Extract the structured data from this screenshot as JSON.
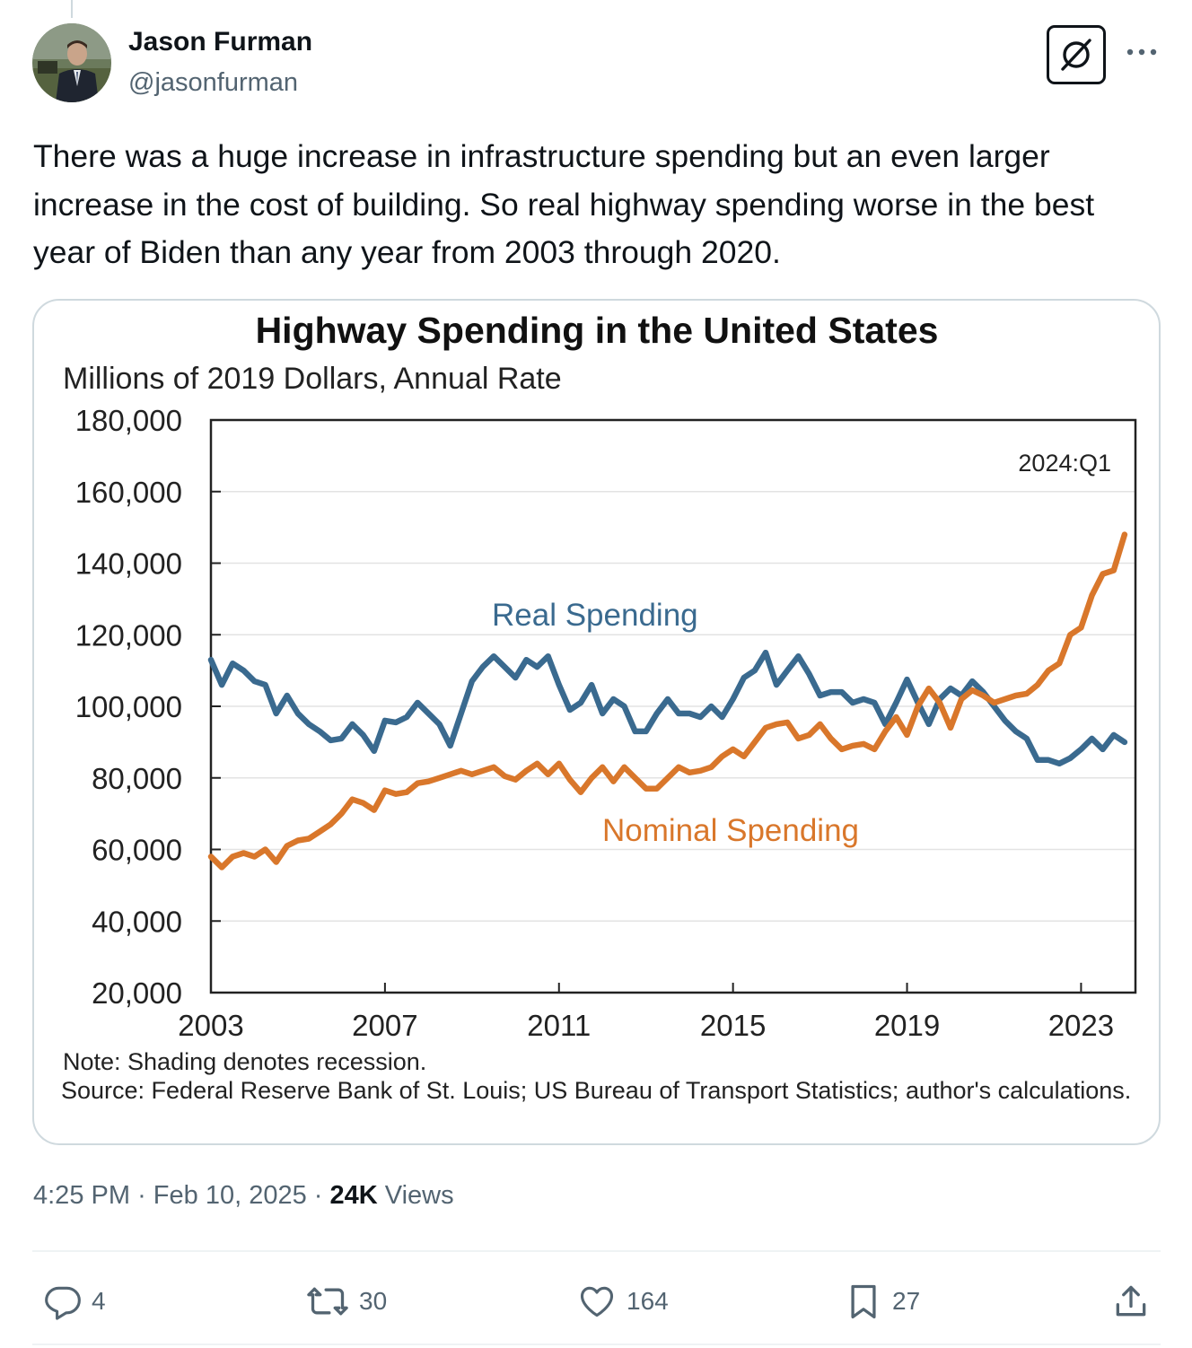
{
  "author": {
    "display_name": "Jason Furman",
    "handle": "@jasonfurman"
  },
  "tweet": {
    "text": "There was a huge increase in infrastructure spending but an even larger increase in the cost of building. So real highway spending worse in the best year of Biden than any year from 2003 through 2020.",
    "time": "4:25 PM",
    "date": "Feb 10, 2025",
    "views_count": "24K",
    "views_label": "Views",
    "separator": "·"
  },
  "actions": {
    "replies": "4",
    "reposts": "30",
    "likes": "164",
    "bookmarks": "27"
  },
  "icons": {
    "grok": "grok-icon",
    "more": "more-icon",
    "reply": "reply-icon",
    "repost": "repost-icon",
    "like": "like-icon",
    "bookmark": "bookmark-icon",
    "share": "share-icon"
  },
  "colors": {
    "text_primary": "#0f1419",
    "text_secondary": "#536471",
    "divider": "#eff3f4",
    "real_series": "#3a6a8f",
    "nominal_series": "#d9772b"
  },
  "chart_data": {
    "type": "line",
    "title": "Highway Spending in the United States",
    "subtitle": "Millions of 2019 Dollars, Annual Rate",
    "ylim": [
      20000,
      180000
    ],
    "xlim": [
      2003,
      2024.25
    ],
    "y_ticks": [
      20000,
      40000,
      60000,
      80000,
      100000,
      120000,
      140000,
      160000,
      180000
    ],
    "y_tick_labels": [
      "20,000",
      "40,000",
      "60,000",
      "80,000",
      "100,000",
      "120,000",
      "140,000",
      "160,000",
      "180,000"
    ],
    "x_ticks": [
      2003,
      2007,
      2011,
      2015,
      2019,
      2023
    ],
    "x_tick_labels": [
      "2003",
      "2007",
      "2011",
      "2015",
      "2019",
      "2023"
    ],
    "annotation": "2024:Q1",
    "note": "Note: Shading denotes recession.",
    "source": "Source: Federal Reserve Bank of St. Louis; US Bureau of Transport Statistics; author's calculations.",
    "series": [
      {
        "name": "Real Spending",
        "label": "Real Spending",
        "color": "#3a6a8f",
        "x": [
          2003.0,
          2003.25,
          2003.5,
          2003.75,
          2004.0,
          2004.25,
          2004.5,
          2004.75,
          2005.0,
          2005.25,
          2005.5,
          2005.75,
          2006.0,
          2006.25,
          2006.5,
          2006.75,
          2007.0,
          2007.25,
          2007.5,
          2007.75,
          2008.0,
          2008.25,
          2008.5,
          2008.75,
          2009.0,
          2009.25,
          2009.5,
          2009.75,
          2010.0,
          2010.25,
          2010.5,
          2010.75,
          2011.0,
          2011.25,
          2011.5,
          2011.75,
          2012.0,
          2012.25,
          2012.5,
          2012.75,
          2013.0,
          2013.25,
          2013.5,
          2013.75,
          2014.0,
          2014.25,
          2014.5,
          2014.75,
          2015.0,
          2015.25,
          2015.5,
          2015.75,
          2016.0,
          2016.25,
          2016.5,
          2016.75,
          2017.0,
          2017.25,
          2017.5,
          2017.75,
          2018.0,
          2018.25,
          2018.5,
          2018.75,
          2019.0,
          2019.25,
          2019.5,
          2019.75,
          2020.0,
          2020.25,
          2020.5,
          2020.75,
          2021.0,
          2021.25,
          2021.5,
          2021.75,
          2022.0,
          2022.25,
          2022.5,
          2022.75,
          2023.0,
          2023.25,
          2023.5,
          2023.75,
          2024.0
        ],
        "values": [
          113000,
          106000,
          112000,
          110000,
          107000,
          106000,
          98000,
          103000,
          98000,
          95000,
          93000,
          90500,
          91000,
          95000,
          92000,
          87500,
          96000,
          95500,
          97000,
          101000,
          98000,
          95000,
          89000,
          98000,
          107000,
          111000,
          114000,
          111000,
          108000,
          113000,
          111000,
          114000,
          106000,
          99000,
          101000,
          106000,
          98000,
          102000,
          100000,
          93000,
          93000,
          98000,
          102000,
          98000,
          98000,
          97000,
          100000,
          97000,
          102000,
          108000,
          110000,
          115000,
          106000,
          110000,
          114000,
          109000,
          103000,
          104000,
          104000,
          101000,
          102000,
          101000,
          95000,
          101000,
          107500,
          101000,
          95000,
          102000,
          105000,
          103000,
          107000,
          104000,
          100000,
          96000,
          93000,
          91000,
          85000,
          85000,
          84000,
          85500,
          88000,
          91000,
          88000,
          92000,
          90000
        ]
      },
      {
        "name": "Nominal Spending",
        "label": "Nominal Spending",
        "color": "#d9772b",
        "x": [
          2003.0,
          2003.25,
          2003.5,
          2003.75,
          2004.0,
          2004.25,
          2004.5,
          2004.75,
          2005.0,
          2005.25,
          2005.5,
          2005.75,
          2006.0,
          2006.25,
          2006.5,
          2006.75,
          2007.0,
          2007.25,
          2007.5,
          2007.75,
          2008.0,
          2008.25,
          2008.5,
          2008.75,
          2009.0,
          2009.25,
          2009.5,
          2009.75,
          2010.0,
          2010.25,
          2010.5,
          2010.75,
          2011.0,
          2011.25,
          2011.5,
          2011.75,
          2012.0,
          2012.25,
          2012.5,
          2012.75,
          2013.0,
          2013.25,
          2013.5,
          2013.75,
          2014.0,
          2014.25,
          2014.5,
          2014.75,
          2015.0,
          2015.25,
          2015.5,
          2015.75,
          2016.0,
          2016.25,
          2016.5,
          2016.75,
          2017.0,
          2017.25,
          2017.5,
          2017.75,
          2018.0,
          2018.25,
          2018.5,
          2018.75,
          2019.0,
          2019.25,
          2019.5,
          2019.75,
          2020.0,
          2020.25,
          2020.5,
          2020.75,
          2021.0,
          2021.25,
          2021.5,
          2021.75,
          2022.0,
          2022.25,
          2022.5,
          2022.75,
          2023.0,
          2023.25,
          2023.5,
          2023.75,
          2024.0
        ],
        "values": [
          58000,
          55000,
          58000,
          59000,
          58000,
          60000,
          56500,
          61000,
          62500,
          63000,
          65000,
          67000,
          70000,
          74000,
          73000,
          71000,
          76500,
          75500,
          76000,
          78500,
          79000,
          80000,
          81000,
          82000,
          81000,
          82000,
          83000,
          80500,
          79500,
          82000,
          84000,
          81000,
          84000,
          79500,
          76000,
          80000,
          83000,
          79000,
          83000,
          80000,
          77000,
          77000,
          80000,
          83000,
          81500,
          82000,
          83000,
          86000,
          88000,
          86000,
          90000,
          94000,
          95000,
          95500,
          91000,
          92000,
          95000,
          91000,
          88000,
          89000,
          89500,
          88000,
          93000,
          97000,
          92000,
          100000,
          105000,
          101000,
          94000,
          102000,
          104500,
          103000,
          101000,
          102000,
          103000,
          103500,
          106000,
          110000,
          112000,
          120000,
          122000,
          131000,
          137000,
          138000,
          148000
        ]
      }
    ]
  }
}
